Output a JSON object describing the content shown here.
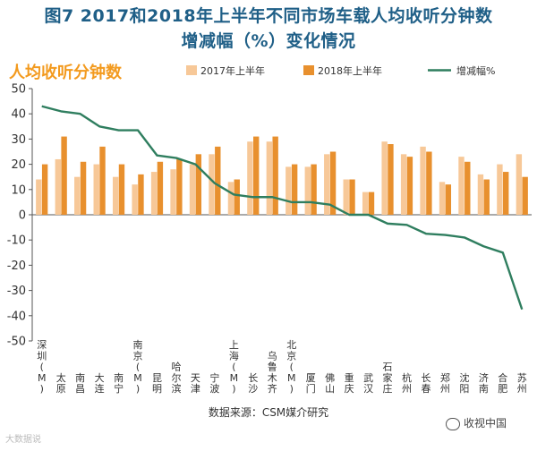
{
  "title": {
    "line1": "图7 2017和2018年上半年不同市场车载人均收听分钟数",
    "line2": "增减幅（%）变化情况"
  },
  "source": "数据来源：CSM媒介研究",
  "watermark": {
    "left": "大数据说",
    "right": "收视中国"
  },
  "colors": {
    "bar2017": "#f7c898",
    "bar2018": "#e8902e",
    "line": "#2f7e5f",
    "title": "#1f5f87",
    "subtitle": "#f39a1e"
  },
  "chart_data": {
    "type": "bar+line",
    "subtitle": "人均收听分钟数",
    "ylim": [
      -50,
      50
    ],
    "yticks": [
      50,
      40,
      30,
      20,
      10,
      0,
      -10,
      -20,
      -30,
      -40,
      -50
    ],
    "categories": [
      "深圳(M)",
      "太原",
      "南昌",
      "大连",
      "南宁",
      "南京(M)",
      "昆明",
      "哈尔滨",
      "天津",
      "宁波",
      "上海(M)",
      "长沙",
      "乌鲁木齐",
      "北京(M)",
      "厦门",
      "佛山",
      "重庆",
      "武汉",
      "石家庄",
      "杭州",
      "长春",
      "郑州",
      "沈阳",
      "济南",
      "合肥",
      "苏州"
    ],
    "series": [
      {
        "name": "2017年上半年",
        "kind": "bar",
        "values": [
          14,
          22,
          15,
          20,
          15,
          12,
          17,
          18,
          20,
          24,
          13,
          29,
          29,
          19,
          19,
          24,
          14,
          9,
          29,
          24,
          27,
          13,
          23,
          16,
          20,
          24
        ]
      },
      {
        "name": "2018年上半年",
        "kind": "bar",
        "values": [
          20,
          31,
          21,
          27,
          20,
          16,
          21,
          22,
          24,
          27,
          14,
          31,
          31,
          20,
          20,
          25,
          14,
          9,
          28,
          23,
          25,
          12,
          21,
          14,
          17,
          15
        ]
      },
      {
        "name": "增减幅%",
        "kind": "line",
        "values": [
          43,
          41,
          40,
          35,
          33.5,
          33.5,
          23.5,
          22.5,
          20,
          12.5,
          8,
          7,
          7,
          5,
          5,
          4,
          0,
          0,
          -3.5,
          -4,
          -7.5,
          -8,
          -9,
          -12.5,
          -15,
          -37.5
        ]
      }
    ]
  }
}
